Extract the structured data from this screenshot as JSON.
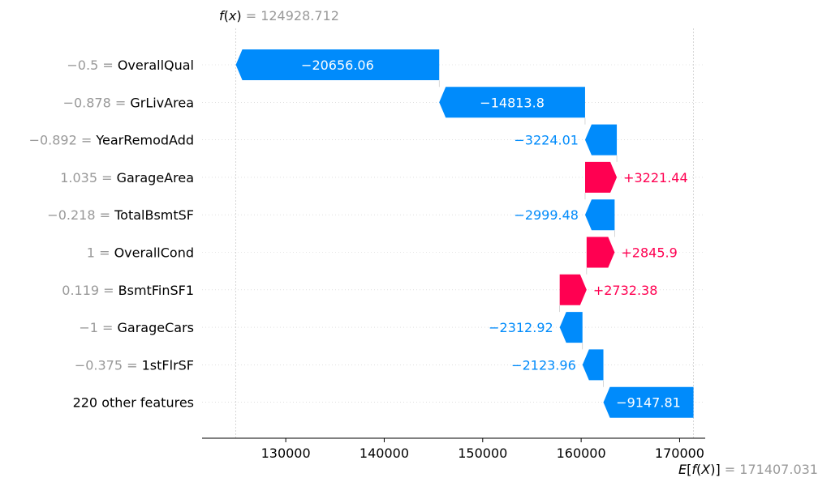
{
  "chart_data": {
    "type": "waterfall",
    "fx": {
      "label": "f(x)",
      "value": 124928.712,
      "text": "124928.712"
    },
    "efx": {
      "label": "E[f(X)]",
      "value": 171407.031,
      "text": "171407.031"
    },
    "features": [
      {
        "value_text": "−0.5",
        "name": "OverallQual",
        "contribution": -20656.06,
        "label": "−20656.06"
      },
      {
        "value_text": "−0.878",
        "name": "GrLivArea",
        "contribution": -14813.8,
        "label": "−14813.8"
      },
      {
        "value_text": "−0.892",
        "name": "YearRemodAdd",
        "contribution": -3224.01,
        "label": "−3224.01"
      },
      {
        "value_text": "1.035",
        "name": "GarageArea",
        "contribution": 3221.44,
        "label": "+3221.44"
      },
      {
        "value_text": "−0.218",
        "name": "TotalBsmtSF",
        "contribution": -2999.48,
        "label": "−2999.48"
      },
      {
        "value_text": "1",
        "name": "OverallCond",
        "contribution": 2845.9,
        "label": "+2845.9"
      },
      {
        "value_text": "0.119",
        "name": "BsmtFinSF1",
        "contribution": 2732.38,
        "label": "+2732.38"
      },
      {
        "value_text": "−1",
        "name": "GarageCars",
        "contribution": -2312.92,
        "label": "−2312.92"
      },
      {
        "value_text": "−0.375",
        "name": "1stFlrSF",
        "contribution": -2123.96,
        "label": "−2123.96"
      },
      {
        "value_text": "",
        "name": "220 other features",
        "contribution": -9147.81,
        "label": "−9147.81"
      }
    ],
    "x_ticks": [
      130000,
      140000,
      150000,
      160000,
      170000
    ],
    "x_tick_labels": [
      "130000",
      "140000",
      "150000",
      "160000",
      "170000"
    ],
    "xlim": [
      121500,
      172600
    ],
    "colors": {
      "positive": "#ff0051",
      "negative": "#008bfb",
      "muted": "#999999"
    }
  }
}
